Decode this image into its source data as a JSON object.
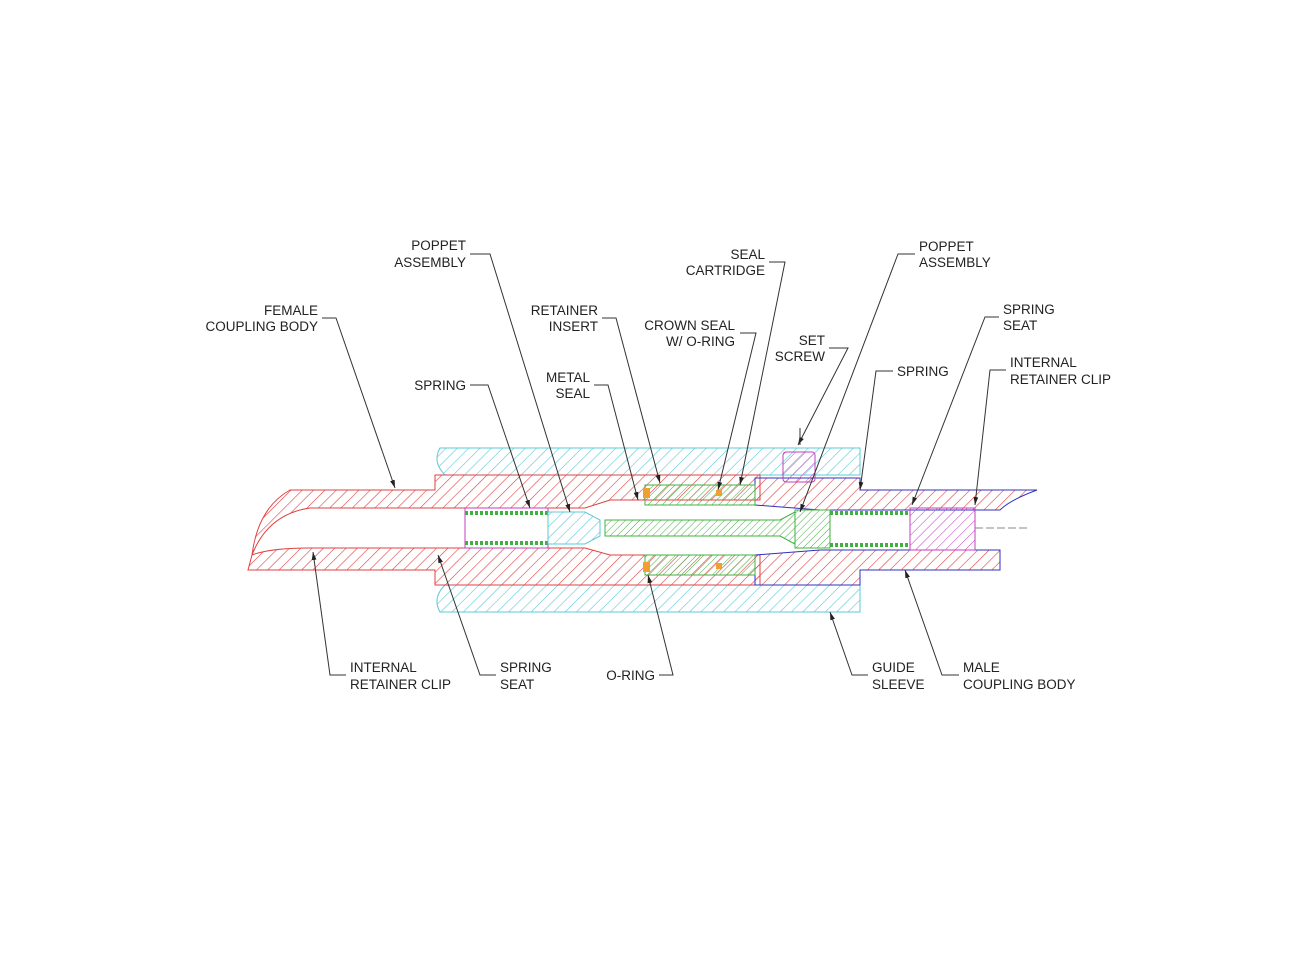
{
  "title": null,
  "labels": [
    {
      "lines": [
        "FEMALE",
        "COUPLING BODY"
      ]
    },
    {
      "lines": [
        "POPPET",
        "ASSEMBLY"
      ]
    },
    {
      "lines": [
        "RETAINER",
        "INSERT"
      ]
    },
    {
      "lines": [
        "SEAL",
        "CARTRIDGE"
      ]
    },
    {
      "lines": [
        "CROWN SEAL",
        "W/ O-RING"
      ]
    },
    {
      "lines": [
        "POPPET",
        "ASSEMBLY"
      ]
    },
    {
      "lines": [
        "SET",
        "SCREW"
      ]
    },
    {
      "lines": [
        "SPRING",
        "SEAT"
      ]
    },
    {
      "lines": [
        "INTERNAL",
        "RETAINER CLIP"
      ]
    },
    {
      "lines": [
        "SPRING"
      ]
    },
    {
      "lines": [
        "METAL",
        "SEAL"
      ]
    },
    {
      "lines": [
        "SPRING"
      ]
    },
    {
      "lines": [
        "INTERNAL",
        "RETAINER CLIP"
      ]
    },
    {
      "lines": [
        "SPRING",
        "SEAT"
      ]
    },
    {
      "lines": [
        "O-RING"
      ]
    },
    {
      "lines": [
        "GUIDE",
        "SLEEVE"
      ]
    },
    {
      "lines": [
        "MALE",
        "COUPLING BODY"
      ]
    }
  ]
}
